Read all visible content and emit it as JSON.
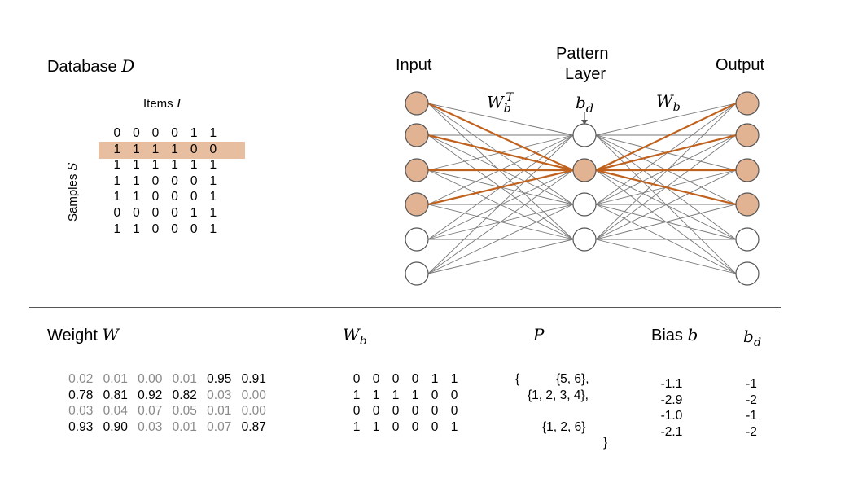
{
  "database": {
    "title": "Database",
    "symbol": "D",
    "items_label": "Items",
    "items_symbol": "I",
    "samples_label": "Samples",
    "samples_symbol": "S",
    "rows": [
      [
        "0",
        "0",
        "0",
        "0",
        "1",
        "1"
      ],
      [
        "1",
        "1",
        "1",
        "1",
        "0",
        "0"
      ],
      [
        "1",
        "1",
        "1",
        "1",
        "1",
        "1"
      ],
      [
        "1",
        "1",
        "0",
        "0",
        "0",
        "1"
      ],
      [
        "1",
        "1",
        "0",
        "0",
        "0",
        "1"
      ],
      [
        "0",
        "0",
        "0",
        "0",
        "1",
        "1"
      ],
      [
        "1",
        "1",
        "0",
        "0",
        "0",
        "1"
      ]
    ],
    "highlight_row": 1,
    "highlight_color": "#e7bea0"
  },
  "network": {
    "input_label": "Input",
    "pattern_label_line1": "Pattern",
    "pattern_label_line2": "Layer",
    "output_label": "Output",
    "left_weight_symbol": "W",
    "left_weight_sub": "b",
    "left_weight_sup": "T",
    "bias_symbol": "b",
    "bias_sub": "d",
    "right_weight_symbol": "W",
    "right_weight_sub": "b",
    "input_active": [
      true,
      true,
      true,
      true,
      false,
      false
    ],
    "output_active": [
      true,
      true,
      true,
      true,
      false,
      false
    ],
    "pattern_active": [
      false,
      true,
      false,
      false
    ],
    "active_fill": "#e2b393",
    "active_edge_color": "#c0621e",
    "edge_color": "#777777"
  },
  "weight": {
    "title": "Weight",
    "symbol": "W",
    "rows": [
      [
        {
          "v": "0.02",
          "dim": true
        },
        {
          "v": "0.01",
          "dim": true
        },
        {
          "v": "0.00",
          "dim": true
        },
        {
          "v": "0.01",
          "dim": true
        },
        {
          "v": "0.95",
          "dim": false
        },
        {
          "v": "0.91",
          "dim": false
        }
      ],
      [
        {
          "v": "0.78",
          "dim": false
        },
        {
          "v": "0.81",
          "dim": false
        },
        {
          "v": "0.92",
          "dim": false
        },
        {
          "v": "0.82",
          "dim": false
        },
        {
          "v": "0.03",
          "dim": true
        },
        {
          "v": "0.00",
          "dim": true
        }
      ],
      [
        {
          "v": "0.03",
          "dim": true
        },
        {
          "v": "0.04",
          "dim": true
        },
        {
          "v": "0.07",
          "dim": true
        },
        {
          "v": "0.05",
          "dim": true
        },
        {
          "v": "0.01",
          "dim": true
        },
        {
          "v": "0.00",
          "dim": true
        }
      ],
      [
        {
          "v": "0.93",
          "dim": false
        },
        {
          "v": "0.90",
          "dim": false
        },
        {
          "v": "0.03",
          "dim": true
        },
        {
          "v": "0.01",
          "dim": true
        },
        {
          "v": "0.07",
          "dim": true
        },
        {
          "v": "0.87",
          "dim": false
        }
      ]
    ]
  },
  "wb": {
    "symbol": "W",
    "sub": "b",
    "rows": [
      [
        "0",
        "0",
        "0",
        "0",
        "1",
        "1"
      ],
      [
        "1",
        "1",
        "1",
        "1",
        "0",
        "0"
      ],
      [
        "0",
        "0",
        "0",
        "0",
        "0",
        "0"
      ],
      [
        "1",
        "1",
        "0",
        "0",
        "0",
        "1"
      ]
    ]
  },
  "patterns": {
    "symbol": "P",
    "open_brace": "{",
    "close_brace": "}",
    "lines": [
      "{5, 6},",
      "{1, 2, 3, 4},",
      "",
      "{1, 2, 6}"
    ]
  },
  "bias": {
    "title": "Bias",
    "symbol": "b",
    "values": [
      "-1.1",
      "-2.9",
      "-1.0",
      "-2.1"
    ]
  },
  "bd": {
    "symbol": "b",
    "sub": "d",
    "values": [
      "-1",
      "-2",
      "-1",
      "-2"
    ]
  }
}
